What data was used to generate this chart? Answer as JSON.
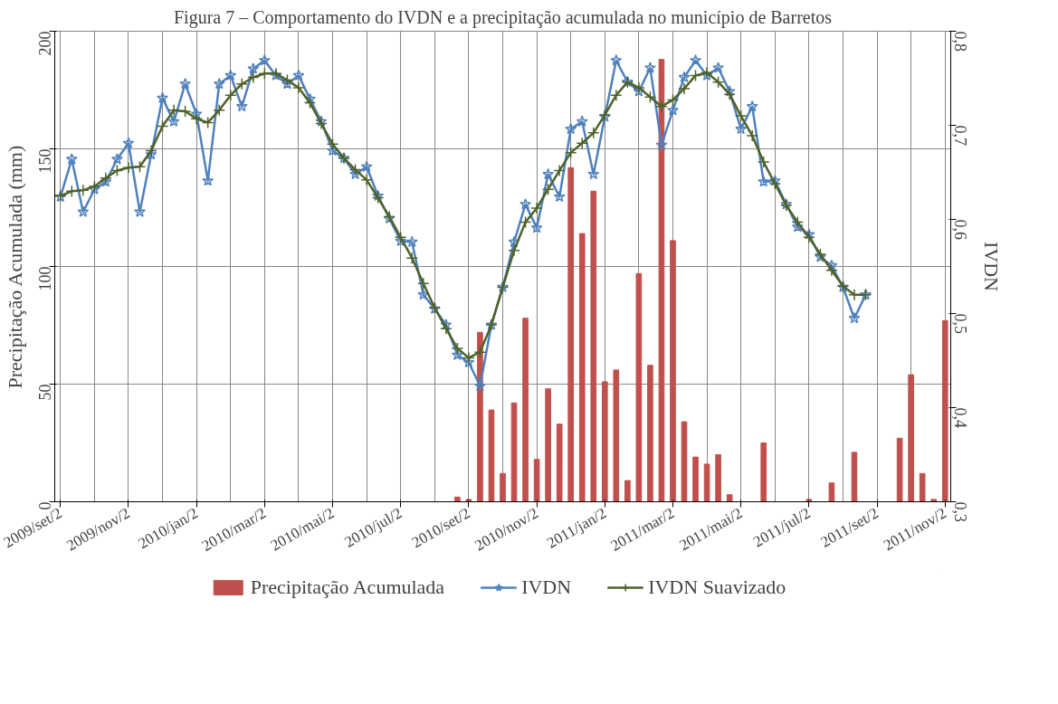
{
  "chart_data": {
    "type": "line",
    "title": "Figura 7 – Comportamento do IVDN e a precipitação acumulada no município de Barretos",
    "categories": [
      "2009/set/2",
      null,
      null,
      null,
      null,
      null,
      "2009/nov/2",
      null,
      null,
      null,
      null,
      null,
      "2010/jan/2",
      null,
      null,
      null,
      null,
      null,
      "2010/mar/2",
      null,
      null,
      null,
      null,
      null,
      "2010/mai/2",
      null,
      null,
      null,
      null,
      null,
      "2010/jul/2",
      null,
      null,
      null,
      null,
      null,
      "2010/set/2",
      null,
      null,
      null,
      null,
      null,
      "2010/nov/2",
      null,
      null,
      null,
      null,
      null,
      "2011/jan/2",
      null,
      null,
      null,
      null,
      null,
      "2011/mar/2",
      null,
      null,
      null,
      null,
      null,
      "2011/mai/2",
      null,
      null,
      null,
      null,
      null,
      "2011/jul/2",
      null,
      null,
      null,
      null,
      null,
      "2011/set/2",
      null,
      null,
      null,
      null,
      null,
      "2011/nov/2"
    ],
    "ylabel": "Precipitação Acumulada (mm)",
    "y2label": "IVDN",
    "ylim": [
      0,
      200
    ],
    "yticks": [
      0,
      50,
      100,
      150,
      200
    ],
    "y2lim": [
      0.3,
      0.8
    ],
    "y2ticks": [
      {
        "value": 0.3,
        "label": "0,3"
      },
      {
        "value": 0.4,
        "label": "0,4"
      },
      {
        "value": 0.5,
        "label": "0,5"
      },
      {
        "value": 0.6,
        "label": "0,6"
      },
      {
        "value": 0.7,
        "label": "0,7"
      },
      {
        "value": 0.8,
        "label": "0,8"
      }
    ],
    "grid": true,
    "legend": "bottom",
    "series": [
      {
        "name": "Precipitação Acumulada",
        "type": "bar",
        "color": "#c0504d",
        "values": [
          null,
          null,
          null,
          null,
          null,
          null,
          null,
          null,
          null,
          null,
          null,
          null,
          null,
          null,
          null,
          null,
          null,
          null,
          null,
          null,
          null,
          null,
          null,
          null,
          null,
          null,
          null,
          null,
          null,
          null,
          null,
          null,
          null,
          null,
          null,
          2,
          1,
          72,
          39,
          12,
          42,
          78,
          18,
          48,
          33,
          142,
          114,
          132,
          51,
          56,
          9,
          97,
          58,
          188,
          111,
          34,
          19,
          16,
          20,
          3,
          null,
          null,
          25,
          null,
          null,
          null,
          1,
          null,
          8,
          null,
          21,
          null,
          null,
          null,
          27,
          54,
          12,
          1,
          77
        ]
      },
      {
        "name": "IVDN",
        "axis": "y2",
        "color": "#4f81bd",
        "marker": "star",
        "line_style": "solid",
        "values": [
          0.624,
          0.664,
          0.608,
          0.632,
          0.64,
          0.664,
          0.681,
          0.608,
          0.669,
          0.729,
          0.704,
          0.744,
          0.712,
          0.641,
          0.744,
          0.753,
          0.72,
          0.76,
          0.769,
          0.753,
          0.744,
          0.753,
          0.728,
          0.704,
          0.673,
          0.665,
          0.648,
          0.656,
          0.625,
          0.601,
          0.577,
          0.576,
          0.52,
          0.505,
          0.488,
          0.456,
          0.448,
          0.423,
          0.488,
          0.528,
          0.576,
          0.616,
          0.591,
          0.648,
          0.624,
          0.696,
          0.704,
          0.648,
          0.709,
          0.769,
          0.746,
          0.736,
          0.761,
          0.679,
          0.716,
          0.751,
          0.769,
          0.753,
          0.761,
          0.736,
          0.696,
          0.72,
          0.64,
          0.641,
          0.616,
          0.592,
          0.584,
          0.56,
          0.551,
          0.528,
          0.495,
          0.52,
          null,
          null,
          null,
          null,
          null,
          null,
          null
        ]
      },
      {
        "name": "IVDN Suavizado",
        "axis": "y2",
        "color": "#4f6228",
        "marker": "cross",
        "line_style": "solid",
        "values": [
          0.625,
          0.63,
          0.631,
          0.635,
          0.644,
          0.652,
          0.655,
          0.656,
          0.673,
          0.699,
          0.716,
          0.715,
          0.707,
          0.703,
          0.716,
          0.732,
          0.744,
          0.751,
          0.755,
          0.755,
          0.748,
          0.74,
          0.724,
          0.702,
          0.68,
          0.665,
          0.653,
          0.642,
          0.623,
          0.603,
          0.581,
          0.559,
          0.532,
          0.506,
          0.484,
          0.463,
          0.453,
          0.459,
          0.488,
          0.528,
          0.567,
          0.597,
          0.612,
          0.632,
          0.652,
          0.671,
          0.681,
          0.692,
          0.711,
          0.732,
          0.746,
          0.74,
          0.73,
          0.72,
          0.727,
          0.739,
          0.753,
          0.756,
          0.746,
          0.733,
          0.71,
          0.689,
          0.661,
          0.638,
          0.615,
          0.597,
          0.581,
          0.563,
          0.546,
          0.529,
          0.52,
          0.52,
          null,
          null,
          null,
          null,
          null,
          null,
          null
        ]
      }
    ]
  }
}
